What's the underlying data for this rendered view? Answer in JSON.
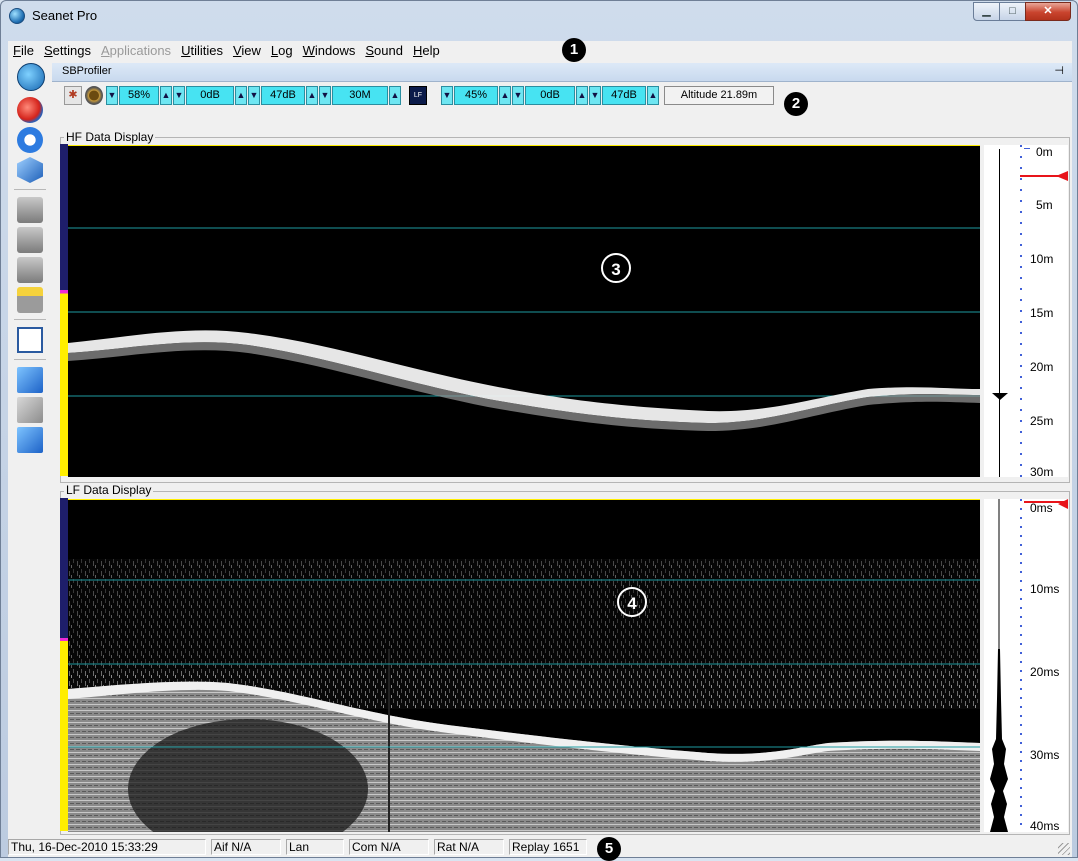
{
  "window": {
    "title": "Seanet Pro"
  },
  "menu": [
    "File",
    "Settings",
    "Applications",
    "Utilities",
    "View",
    "Log",
    "Windows",
    "Sound",
    "Help"
  ],
  "menu_disabled": [
    "Applications"
  ],
  "callouts": [
    "1",
    "2",
    "3",
    "4",
    "5"
  ],
  "panel": {
    "title": "SBProfiler",
    "pin_icon": "pin-icon"
  },
  "hf_controls": {
    "gain": "58%",
    "contrast": "0dB",
    "level": "47dB",
    "range": "30M"
  },
  "lf_controls": {
    "gain": "45%",
    "contrast": "0dB",
    "level": "47dB"
  },
  "altitude": "Altitude 21.89m",
  "hf_display": {
    "label": "HF Data Display",
    "scale_labels": [
      "0m",
      "5m",
      "10m",
      "15m",
      "20m",
      "25m",
      "30m"
    ]
  },
  "lf_display": {
    "label": "LF Data Display",
    "scale_labels": [
      "0ms",
      "10ms",
      "20ms",
      "30ms",
      "40ms"
    ]
  },
  "status": {
    "datetime": "Thu, 16-Dec-2010 15:33:29",
    "aif": "Aif N/A",
    "lan": "Lan",
    "com": "Com N/A",
    "rat": "Rat N/A",
    "replay": "Replay 1651"
  },
  "colors": {
    "sonar_bg": "#000000",
    "grid_line": "#1e9aa0",
    "control_fill": "#47e3f2",
    "marker": "#e8141a",
    "margin_bar": "#ffee00"
  }
}
